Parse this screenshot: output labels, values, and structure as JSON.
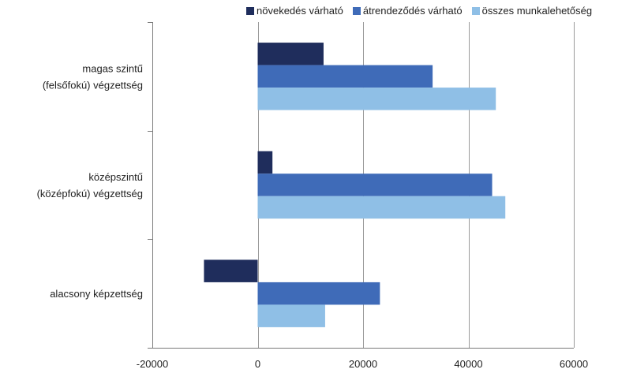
{
  "chart_data": {
    "type": "bar",
    "orientation": "horizontal",
    "categories": [
      [
        "magas szintű",
        "(felsőfokú) végzettség"
      ],
      [
        "középszintű",
        "(középfokú) végzettség"
      ],
      [
        "alacsony képzettség"
      ]
    ],
    "series": [
      {
        "name": "növekedés várható",
        "color": "#1f2d5c",
        "values": [
          12500,
          2800,
          -10200
        ]
      },
      {
        "name": "átrendeződés várható",
        "color": "#3f6bb8",
        "values": [
          33200,
          44500,
          23200
        ]
      },
      {
        "name": "összes munkalehetőség",
        "color": "#8fbfe6",
        "values": [
          45200,
          47000,
          12800
        ]
      }
    ],
    "xlim": [
      -20000,
      60000
    ],
    "xticks": [
      -20000,
      0,
      20000,
      40000,
      60000
    ],
    "tick_labels": [
      "-20000",
      "0",
      "20000",
      "40000",
      "60000"
    ],
    "grid": true,
    "legend_position": "top"
  }
}
